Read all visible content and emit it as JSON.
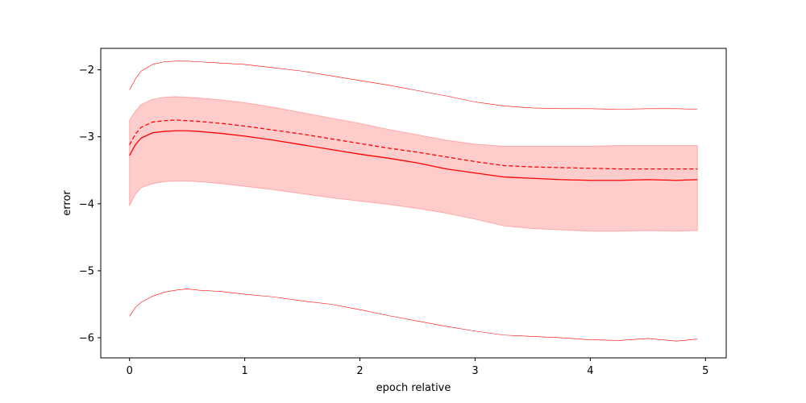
{
  "chart_data": {
    "type": "line",
    "title": "",
    "xlabel": "epoch relative",
    "ylabel": "error",
    "xlim": [
      -0.25,
      5.18
    ],
    "ylim": [
      -6.3,
      -1.68
    ],
    "xticks": [
      0,
      1,
      2,
      3,
      4,
      5
    ],
    "yticks": [
      -2,
      -3,
      -4,
      -5,
      -6
    ],
    "xtick_labels": [
      "0",
      "1",
      "2",
      "3",
      "4",
      "5"
    ],
    "ytick_labels": [
      "−2",
      "−3",
      "−4",
      "−5",
      "−6"
    ],
    "grid": false,
    "legend": "none",
    "colors": {
      "line": "#ff0000",
      "band": "#ff0000",
      "band_opacity": 0.2,
      "axis": "#000000"
    },
    "x": [
      0,
      0.05,
      0.1,
      0.2,
      0.3,
      0.4,
      0.5,
      0.6,
      0.8,
      1.0,
      1.25,
      1.5,
      1.75,
      2.0,
      2.25,
      2.5,
      2.75,
      3.0,
      3.25,
      3.5,
      3.75,
      4.0,
      4.25,
      4.5,
      4.75,
      4.93
    ],
    "series": [
      {
        "style": "solid",
        "values": [
          -3.28,
          -3.12,
          -3.02,
          -2.94,
          -2.92,
          -2.91,
          -2.91,
          -2.92,
          -2.95,
          -2.99,
          -3.05,
          -3.12,
          -3.19,
          -3.26,
          -3.32,
          -3.39,
          -3.48,
          -3.54,
          -3.6,
          -3.62,
          -3.64,
          -3.65,
          -3.65,
          -3.64,
          -3.65,
          -3.64
        ]
      },
      {
        "style": "dashed",
        "values": [
          -3.12,
          -2.96,
          -2.86,
          -2.78,
          -2.76,
          -2.75,
          -2.76,
          -2.77,
          -2.8,
          -2.84,
          -2.9,
          -2.96,
          -3.03,
          -3.1,
          -3.17,
          -3.23,
          -3.3,
          -3.37,
          -3.43,
          -3.45,
          -3.46,
          -3.47,
          -3.48,
          -3.48,
          -3.48,
          -3.48
        ]
      },
      {
        "style": "thin-upper",
        "values": [
          -2.3,
          -2.14,
          -2.02,
          -1.92,
          -1.88,
          -1.87,
          -1.87,
          -1.88,
          -1.9,
          -1.92,
          -1.97,
          -2.02,
          -2.09,
          -2.16,
          -2.23,
          -2.31,
          -2.39,
          -2.48,
          -2.54,
          -2.57,
          -2.58,
          -2.58,
          -2.59,
          -2.58,
          -2.58,
          -2.59
        ]
      },
      {
        "style": "thin-lower",
        "values": [
          -5.68,
          -5.55,
          -5.47,
          -5.38,
          -5.32,
          -5.29,
          -5.27,
          -5.29,
          -5.31,
          -5.35,
          -5.39,
          -5.45,
          -5.5,
          -5.58,
          -5.67,
          -5.75,
          -5.83,
          -5.9,
          -5.96,
          -5.98,
          -6.0,
          -6.03,
          -6.04,
          -6.01,
          -6.05,
          -6.02
        ]
      }
    ],
    "band": {
      "upper": [
        -2.75,
        -2.62,
        -2.52,
        -2.44,
        -2.41,
        -2.4,
        -2.41,
        -2.42,
        -2.45,
        -2.49,
        -2.56,
        -2.64,
        -2.72,
        -2.8,
        -2.89,
        -2.97,
        -3.05,
        -3.11,
        -3.14,
        -3.14,
        -3.14,
        -3.14,
        -3.13,
        -3.13,
        -3.13,
        -3.13
      ],
      "lower": [
        -4.03,
        -3.86,
        -3.76,
        -3.7,
        -3.67,
        -3.66,
        -3.66,
        -3.67,
        -3.7,
        -3.74,
        -3.79,
        -3.85,
        -3.91,
        -3.96,
        -4.01,
        -4.07,
        -4.14,
        -4.23,
        -4.33,
        -4.37,
        -4.39,
        -4.41,
        -4.41,
        -4.4,
        -4.41,
        -4.4
      ]
    }
  }
}
